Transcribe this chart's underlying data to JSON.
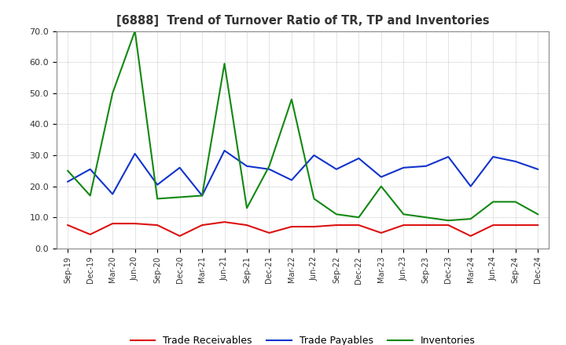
{
  "title": "[6888]  Trend of Turnover Ratio of TR, TP and Inventories",
  "xlabels": [
    "Sep-19",
    "Dec-19",
    "Mar-20",
    "Jun-20",
    "Sep-20",
    "Dec-20",
    "Mar-21",
    "Jun-21",
    "Sep-21",
    "Dec-21",
    "Mar-22",
    "Jun-22",
    "Sep-22",
    "Dec-22",
    "Mar-23",
    "Jun-23",
    "Sep-23",
    "Dec-23",
    "Mar-24",
    "Jun-24",
    "Sep-24",
    "Dec-24"
  ],
  "ylim": [
    0,
    70
  ],
  "yticks": [
    0.0,
    10.0,
    20.0,
    30.0,
    40.0,
    50.0,
    60.0,
    70.0
  ],
  "trade_receivables": [
    7.5,
    4.5,
    8.0,
    8.0,
    7.5,
    4.0,
    7.5,
    8.5,
    7.5,
    5.0,
    7.0,
    7.0,
    7.5,
    7.5,
    5.0,
    7.5,
    7.5,
    7.5,
    4.0,
    7.5,
    7.5,
    7.5
  ],
  "trade_payables": [
    21.5,
    25.5,
    17.5,
    30.5,
    20.5,
    26.0,
    17.0,
    31.5,
    26.5,
    25.5,
    22.0,
    30.0,
    25.5,
    29.0,
    23.0,
    26.0,
    26.5,
    29.5,
    20.0,
    29.5,
    28.0,
    25.5
  ],
  "inventories": [
    25.0,
    17.0,
    50.0,
    70.0,
    16.0,
    16.5,
    17.0,
    59.5,
    13.0,
    26.5,
    48.0,
    16.0,
    11.0,
    10.0,
    20.0,
    11.0,
    10.0,
    9.0,
    9.5,
    15.0,
    15.0,
    11.0
  ],
  "color_tr": "#dd1111",
  "color_tp": "#1133cc",
  "color_inv": "#118811",
  "legend_labels": [
    "Trade Receivables",
    "Trade Payables",
    "Inventories"
  ],
  "background_color": "#ffffff",
  "grid_color": "#999999",
  "title_color": "#333333"
}
